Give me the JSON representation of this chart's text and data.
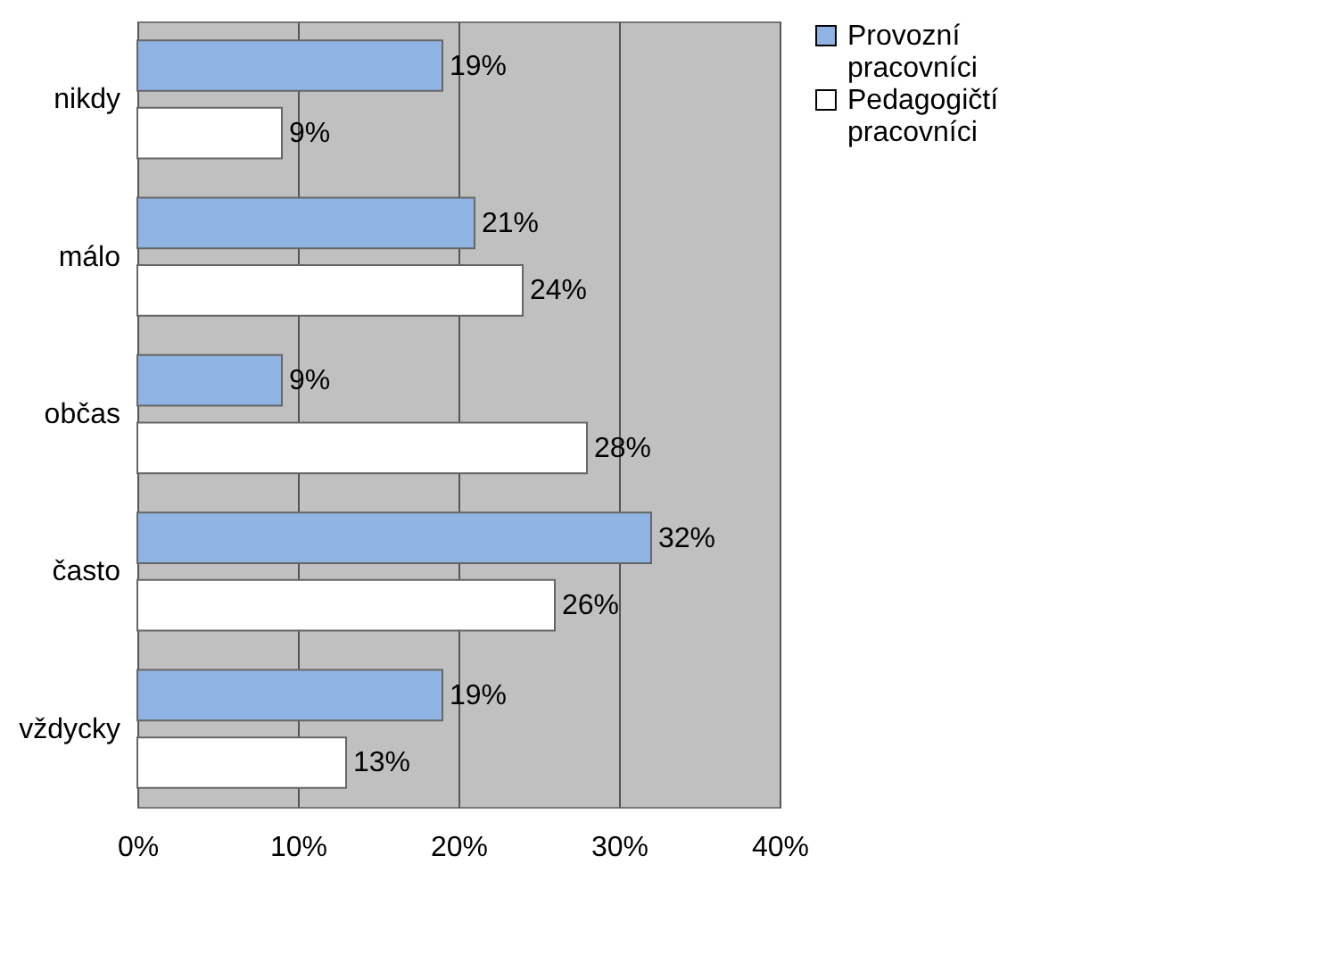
{
  "chart_data": {
    "type": "bar",
    "orientation": "horizontal",
    "categories": [
      "nikdy",
      "málo",
      "občas",
      "často",
      "vždycky"
    ],
    "series": [
      {
        "name": "Provozní pracovníci",
        "color": "#8fb4e3",
        "values": [
          19,
          21,
          9,
          32,
          19
        ],
        "value_labels": [
          "19%",
          "21%",
          "9%",
          "32%",
          "19%"
        ]
      },
      {
        "name": "Pedagogičtí pracovníci",
        "color": "#ffffff",
        "values": [
          9,
          24,
          28,
          26,
          13
        ],
        "value_labels": [
          "9%",
          "24%",
          "28%",
          "26%",
          "13%"
        ]
      }
    ],
    "xlim": [
      0,
      40
    ],
    "xticks": [
      {
        "value": 0,
        "label": "0%"
      },
      {
        "value": 10,
        "label": "10%"
      },
      {
        "value": 20,
        "label": "20%"
      },
      {
        "value": 30,
        "label": "30%"
      },
      {
        "value": 40,
        "label": "40%"
      }
    ],
    "grid": "x",
    "legend": "right"
  }
}
